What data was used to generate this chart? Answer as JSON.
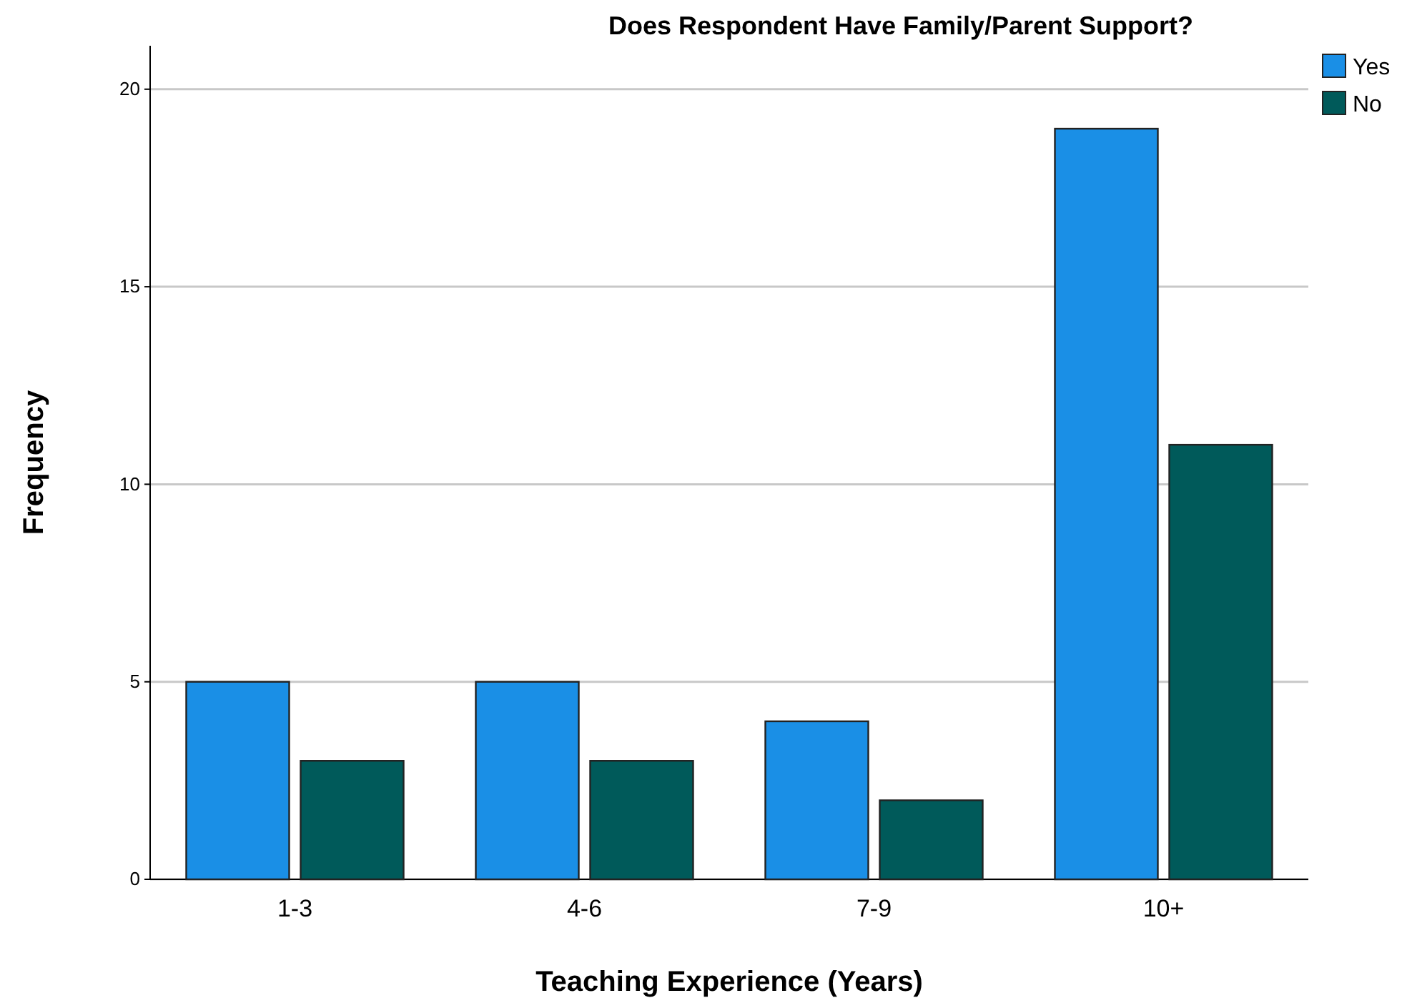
{
  "chart_data": {
    "type": "bar",
    "title": "Does Respondent Have Family/Parent Support?",
    "xlabel": "Teaching Experience (Years)",
    "ylabel": "Frequency",
    "categories": [
      "1-3",
      "4-6",
      "7-9",
      "10+"
    ],
    "series": [
      {
        "name": "Yes",
        "color": "#1a8fe6",
        "values": [
          5,
          5,
          4,
          19
        ]
      },
      {
        "name": "No",
        "color": "#005a5a",
        "values": [
          3,
          3,
          2,
          11
        ]
      }
    ],
    "ylim": [
      0,
      21.1
    ],
    "yticks": [
      0,
      5,
      10,
      15,
      20
    ],
    "grid": "y",
    "legend": "top right"
  }
}
